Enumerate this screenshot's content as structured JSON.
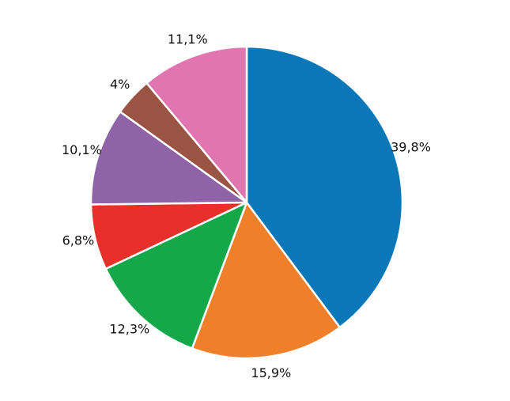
{
  "chart_data": {
    "type": "pie",
    "values": [
      39.8,
      15.9,
      12.3,
      6.8,
      10.1,
      4,
      11.1
    ],
    "value_labels": [
      "39,8%",
      "15,9%",
      "12,3%",
      "6,8%",
      "10,1%",
      "4%",
      "11,1%"
    ],
    "colors": [
      "#0a77b8",
      "#f07f2a",
      "#14a84a",
      "#e8302a",
      "#8e63a8",
      "#9a5444",
      "#e075b0"
    ],
    "start_angle": 90,
    "direction": "clockwise"
  }
}
